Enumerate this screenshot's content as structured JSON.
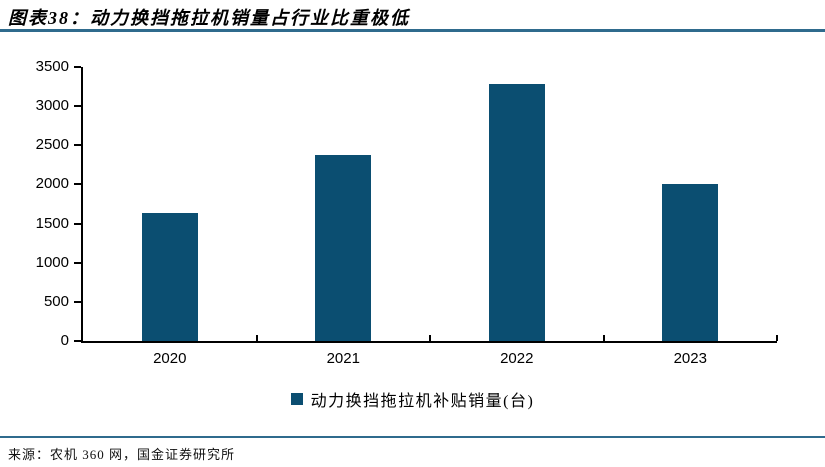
{
  "header": {
    "title": "图表38：动力换挡拖拉机销量占行业比重极低"
  },
  "footer": {
    "source": "来源：农机 360 网，国金证券研究所"
  },
  "colors": {
    "bar": "#0B4E71",
    "rule": "#2F6B8D",
    "axis": "#000000"
  },
  "chart_data": {
    "type": "bar",
    "categories": [
      "2020",
      "2021",
      "2022",
      "2023"
    ],
    "values": [
      1630,
      2370,
      3280,
      2010
    ],
    "series": [
      {
        "name": "动力换挡拖拉机补贴销量(台)",
        "values": [
          1630,
          2370,
          3280,
          2010
        ]
      }
    ],
    "legend": [
      "动力换挡拖拉机补贴销量(台)"
    ],
    "title": "",
    "xlabel": "",
    "ylabel": "",
    "ylim": [
      0,
      3500
    ],
    "yticks": [
      0,
      500,
      1000,
      1500,
      2000,
      2500,
      3000,
      3500
    ],
    "grid": false,
    "legend_position": "bottom-center"
  }
}
